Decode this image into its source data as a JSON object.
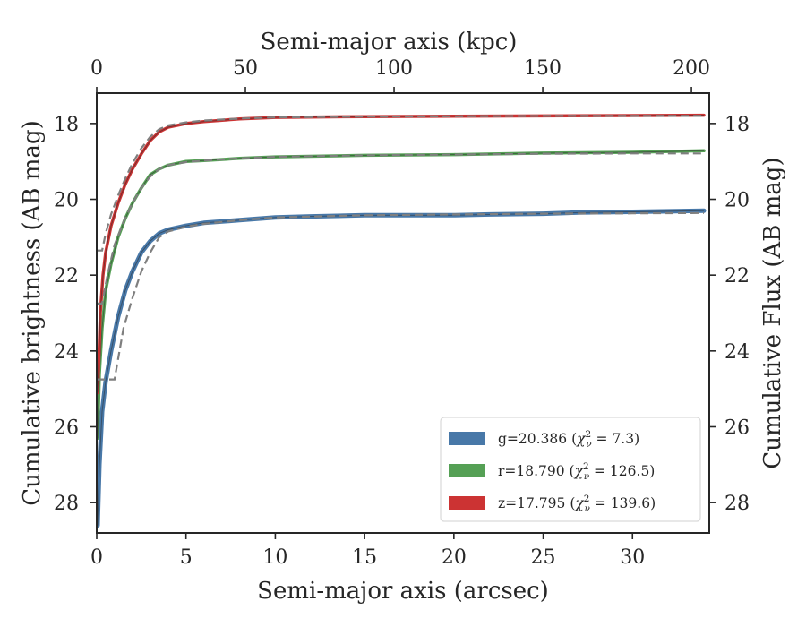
{
  "chart_data": {
    "type": "line",
    "xlabel": "Semi-major axis (arcsec)",
    "ylabel": "Cumulative brightness (AB mag)",
    "ylabel_right": "Cumulative Flux (AB mag)",
    "x2label": "Semi-major axis (kpc)",
    "xlim": [
      0,
      34.3
    ],
    "ylim": [
      28.8,
      17.2
    ],
    "y_inverted": true,
    "x2lim": [
      0,
      206
    ],
    "xticks": [
      "0",
      "5",
      "10",
      "15",
      "20",
      "25",
      "30"
    ],
    "x2ticks": [
      "0",
      "50",
      "100",
      "150",
      "200"
    ],
    "yticks": [
      "18",
      "20",
      "22",
      "24",
      "26",
      "28"
    ],
    "grid": false,
    "legend_position": "lower-right",
    "series": [
      {
        "name": "g=20.386 (χ²ᵥ = 7.3)",
        "legend": {
          "prefix": "g=20.386 (",
          "chi": "χ",
          "sup": "2",
          "sub": "ν",
          "suffix": " = 7.3)"
        },
        "color": "#4878a8",
        "x": [
          0.05,
          0.15,
          0.3,
          0.5,
          0.8,
          1.2,
          1.6,
          2.0,
          2.5,
          3.0,
          3.5,
          4.0,
          5.0,
          6.0,
          8.0,
          10.0,
          12.0,
          15.0,
          18.0,
          20.0,
          22.0,
          25.0,
          27.0,
          30.0,
          34.0
        ],
        "y": [
          28.6,
          27.0,
          25.6,
          24.8,
          24.0,
          23.1,
          22.4,
          21.9,
          21.4,
          21.1,
          20.9,
          20.8,
          20.7,
          20.62,
          20.55,
          20.48,
          20.45,
          20.42,
          20.42,
          20.42,
          20.4,
          20.38,
          20.35,
          20.33,
          20.3
        ],
        "model_x": [
          0.0,
          1.0,
          1.5,
          2.0,
          2.5,
          3.0,
          3.5,
          4.0,
          5.0,
          6.0,
          8.0,
          10.0,
          15.0,
          20.0,
          25.0,
          30.0,
          34.0
        ],
        "model_y": [
          24.75,
          24.75,
          23.4,
          22.6,
          21.9,
          21.4,
          21.0,
          20.85,
          20.72,
          20.65,
          20.55,
          20.48,
          20.42,
          20.4,
          20.38,
          20.37,
          20.36
        ]
      },
      {
        "name": "r=18.790 (χ²ᵥ = 126.5)",
        "legend": {
          "prefix": "r=18.790 (",
          "chi": "χ",
          "sup": "2",
          "sub": "ν",
          "suffix": " = 126.5)"
        },
        "color": "#55a055",
        "x": [
          0.05,
          0.15,
          0.3,
          0.5,
          0.8,
          1.2,
          1.6,
          2.0,
          2.5,
          3.0,
          3.5,
          4.0,
          5.0,
          6.0,
          8.0,
          10.0,
          15.0,
          20.0,
          25.0,
          30.0,
          34.0
        ],
        "y": [
          26.3,
          24.6,
          23.4,
          22.4,
          21.7,
          21.0,
          20.5,
          20.1,
          19.7,
          19.35,
          19.2,
          19.1,
          19.0,
          18.98,
          18.92,
          18.88,
          18.84,
          18.82,
          18.78,
          18.76,
          18.72
        ],
        "model_x": [
          0.0,
          0.3,
          0.6,
          1.0,
          1.5,
          2.0,
          2.5,
          3.0,
          3.5,
          4.0,
          5.0,
          6.0,
          8.0,
          10.0,
          15.0,
          20.0,
          25.0,
          30.0,
          34.0
        ],
        "model_y": [
          22.75,
          22.75,
          22.0,
          21.2,
          20.6,
          20.1,
          19.7,
          19.4,
          19.2,
          19.1,
          19.02,
          18.98,
          18.92,
          18.88,
          18.84,
          18.82,
          18.8,
          18.79,
          18.79
        ]
      },
      {
        "name": "z=17.795 (χ²ᵥ = 139.6)",
        "legend": {
          "prefix": "z=17.795 (",
          "chi": "χ",
          "sup": "2",
          "sub": "ν",
          "suffix": " = 139.6)"
        },
        "color": "#cc3333",
        "x": [
          0.05,
          0.1,
          0.2,
          0.35,
          0.5,
          0.8,
          1.2,
          1.6,
          2.0,
          2.5,
          3.0,
          3.5,
          4.0,
          5.0,
          6.0,
          8.0,
          10.0,
          15.0,
          20.0,
          25.0,
          30.0,
          34.0
        ],
        "y": [
          25.1,
          24.5,
          23.0,
          22.0,
          21.4,
          20.7,
          20.1,
          19.6,
          19.2,
          18.8,
          18.45,
          18.22,
          18.1,
          18.0,
          17.95,
          17.88,
          17.84,
          17.82,
          17.81,
          17.8,
          17.79,
          17.78
        ],
        "model_x": [
          0.0,
          0.3,
          0.5,
          0.8,
          1.2,
          1.6,
          2.0,
          2.5,
          3.0,
          3.5,
          4.0,
          5.0,
          6.0,
          8.0,
          10.0,
          15.0,
          20.0,
          25.0,
          30.0,
          34.0
        ],
        "model_y": [
          21.35,
          21.35,
          20.9,
          20.4,
          19.9,
          19.45,
          19.05,
          18.65,
          18.35,
          18.15,
          18.05,
          17.97,
          17.92,
          17.87,
          17.84,
          17.82,
          17.81,
          17.8,
          17.8,
          17.8
        ]
      }
    ]
  }
}
